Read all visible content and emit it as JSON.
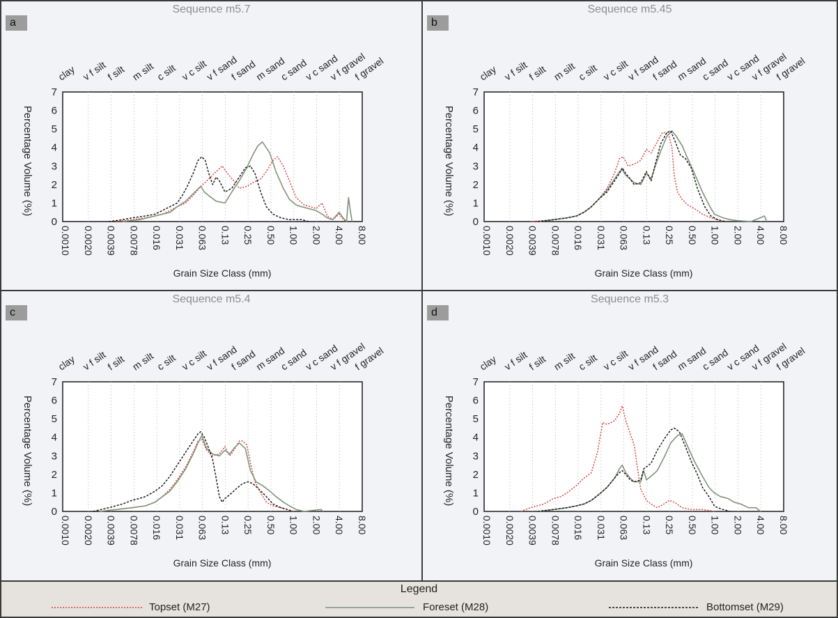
{
  "legend": {
    "title": "Legend",
    "items": [
      {
        "label": "Topset (M27)",
        "color": "#d94040",
        "dash": "2,2"
      },
      {
        "label": "Foreset (M28)",
        "color": "#7e9379",
        "dash": ""
      },
      {
        "label": "Bottomset (M29)",
        "color": "#1a1a1a",
        "dash": "3,2"
      }
    ]
  },
  "chart_data": [
    {
      "type": "line",
      "panel_label": "a",
      "title": "Sequence m5.7",
      "xlabel": "Grain Size Class (mm)",
      "ylabel": "Percentage Volume (%)",
      "ylim": [
        0,
        7
      ],
      "xscale": "log",
      "xlim": [
        0.001,
        8.0
      ],
      "x_ticks": [
        "0.0010",
        "0.0020",
        "0.0039",
        "0.0078",
        "0.016",
        "0.031",
        "0.063",
        "0.13",
        "0.25",
        "0.50",
        "1.00",
        "2.00",
        "4.00",
        "8.00"
      ],
      "y_ticks": [
        "0",
        "1",
        "2",
        "3",
        "4",
        "5",
        "6",
        "7"
      ],
      "grid": "vertical dotted",
      "class_labels": [
        "clay",
        "v f silt",
        "f silt",
        "m silt",
        "c silt",
        "v c silt",
        "v f sand",
        "f sand",
        "m sand",
        "c sand",
        "v c sand",
        "v f gravel",
        "f gravel"
      ],
      "series": [
        {
          "name": "Topset (M27)",
          "x": [
            0.005,
            0.008,
            0.012,
            0.016,
            0.02,
            0.025,
            0.031,
            0.04,
            0.05,
            0.063,
            0.08,
            0.1,
            0.12,
            0.14,
            0.17,
            0.2,
            0.25,
            0.3,
            0.38,
            0.45,
            0.55,
            0.63,
            0.75,
            0.9,
            1.1,
            1.4,
            1.7,
            2.0,
            2.4,
            2.8,
            3.3,
            4.0,
            4.8
          ],
          "y": [
            0,
            0.1,
            0.2,
            0.3,
            0.4,
            0.6,
            0.8,
            1.0,
            1.4,
            1.9,
            2.3,
            2.7,
            3.0,
            2.6,
            2.2,
            1.8,
            1.9,
            2.1,
            2.3,
            2.7,
            3.3,
            3.5,
            3.0,
            2.2,
            1.3,
            0.9,
            0.8,
            0.7,
            1.0,
            0.3,
            0.1,
            0.4,
            0
          ]
        },
        {
          "name": "Foreset (M28)",
          "x": [
            0.006,
            0.01,
            0.016,
            0.025,
            0.031,
            0.04,
            0.05,
            0.063,
            0.07,
            0.08,
            0.1,
            0.13,
            0.16,
            0.2,
            0.25,
            0.3,
            0.35,
            0.4,
            0.5,
            0.6,
            0.75,
            0.9,
            1.1,
            1.3,
            1.6,
            2.0,
            2.4,
            2.8,
            3.3,
            4.0,
            4.5,
            5.0,
            5.3,
            5.6,
            5.9
          ],
          "y": [
            0,
            0.1,
            0.3,
            0.5,
            0.8,
            1.1,
            1.5,
            1.9,
            1.6,
            1.4,
            1.1,
            1.0,
            1.6,
            2.2,
            2.9,
            3.6,
            4.1,
            4.3,
            3.7,
            2.7,
            1.8,
            1.2,
            0.9,
            0.8,
            0.7,
            0.6,
            0.4,
            0.2,
            0.1,
            0.5,
            0.2,
            0,
            1.3,
            0.6,
            0
          ]
        },
        {
          "name": "Bottomset (M29)",
          "x": [
            0.004,
            0.006,
            0.008,
            0.012,
            0.016,
            0.02,
            0.025,
            0.031,
            0.036,
            0.042,
            0.05,
            0.058,
            0.065,
            0.072,
            0.08,
            0.09,
            0.1,
            0.11,
            0.13,
            0.16,
            0.2,
            0.24,
            0.28,
            0.32,
            0.38,
            0.45,
            0.55,
            0.7,
            0.9,
            1.1,
            1.3,
            1.6
          ],
          "y": [
            0,
            0.1,
            0.2,
            0.3,
            0.4,
            0.6,
            0.8,
            1.0,
            1.4,
            1.9,
            2.6,
            3.3,
            3.5,
            3.3,
            2.6,
            2.0,
            2.4,
            2.2,
            1.6,
            1.8,
            2.4,
            2.9,
            3.0,
            2.6,
            1.6,
            0.8,
            0.4,
            0.2,
            0.1,
            0.1,
            0.1,
            0
          ]
        }
      ]
    },
    {
      "type": "line",
      "panel_label": "b",
      "title": "Sequence m5.45",
      "xlabel": "Grain Size Class (mm)",
      "ylabel": "Percentage Volume (%)",
      "ylim": [
        0,
        7
      ],
      "xscale": "log",
      "xlim": [
        0.001,
        8.0
      ],
      "x_ticks": [
        "0.0010",
        "0.0020",
        "0.0039",
        "0.0078",
        "0.016",
        "0.031",
        "0.063",
        "0.13",
        "0.25",
        "0.50",
        "1.00",
        "2.00",
        "4.00",
        "8.00"
      ],
      "y_ticks": [
        "0",
        "1",
        "2",
        "3",
        "4",
        "5",
        "6",
        "7"
      ],
      "grid": "vertical dotted",
      "class_labels": [
        "clay",
        "v f silt",
        "f silt",
        "m silt",
        "c silt",
        "v c silt",
        "v f sand",
        "f sand",
        "m sand",
        "c sand",
        "v c sand",
        "v f gravel",
        "f gravel"
      ],
      "series": [
        {
          "name": "Topset (M27)",
          "x": [
            0.004,
            0.006,
            0.008,
            0.012,
            0.016,
            0.02,
            0.025,
            0.031,
            0.04,
            0.05,
            0.058,
            0.065,
            0.075,
            0.09,
            0.11,
            0.13,
            0.15,
            0.18,
            0.21,
            0.25,
            0.28,
            0.3,
            0.33,
            0.38,
            0.45,
            0.55,
            0.7,
            0.9,
            1.1,
            1.3
          ],
          "y": [
            0,
            0.05,
            0.1,
            0.2,
            0.3,
            0.5,
            0.8,
            1.2,
            1.8,
            2.6,
            3.4,
            3.5,
            3.0,
            3.1,
            3.3,
            3.9,
            3.7,
            4.3,
            4.8,
            4.8,
            4.0,
            2.5,
            1.6,
            1.2,
            0.9,
            0.7,
            0.4,
            0.2,
            0.1,
            0
          ]
        },
        {
          "name": "Foreset (M28)",
          "x": [
            0.005,
            0.008,
            0.012,
            0.016,
            0.02,
            0.025,
            0.031,
            0.04,
            0.05,
            0.058,
            0.063,
            0.07,
            0.08,
            0.09,
            0.11,
            0.13,
            0.15,
            0.17,
            0.2,
            0.24,
            0.28,
            0.32,
            0.38,
            0.45,
            0.55,
            0.7,
            0.85,
            1.0,
            1.3,
            1.6,
            2.0,
            3.0,
            4.5,
            4.8
          ],
          "y": [
            0,
            0.1,
            0.2,
            0.3,
            0.5,
            0.8,
            1.2,
            1.7,
            2.3,
            2.7,
            2.8,
            2.5,
            2.3,
            2.1,
            2.0,
            2.6,
            2.3,
            3.0,
            3.8,
            4.6,
            4.9,
            4.6,
            4.1,
            3.4,
            2.6,
            1.6,
            0.9,
            0.4,
            0.2,
            0.1,
            0.05,
            0,
            0.3,
            0
          ]
        },
        {
          "name": "Bottomset (M29)",
          "x": [
            0.005,
            0.008,
            0.012,
            0.016,
            0.02,
            0.025,
            0.031,
            0.04,
            0.05,
            0.058,
            0.063,
            0.07,
            0.08,
            0.09,
            0.11,
            0.13,
            0.15,
            0.17,
            0.2,
            0.24,
            0.27,
            0.31,
            0.36,
            0.42,
            0.5,
            0.6,
            0.75,
            0.9,
            1.1,
            1.4
          ],
          "y": [
            0,
            0.1,
            0.2,
            0.3,
            0.5,
            0.8,
            1.2,
            1.6,
            2.2,
            2.6,
            2.9,
            2.6,
            2.3,
            2.0,
            2.1,
            2.7,
            2.2,
            3.1,
            4.2,
            4.8,
            4.9,
            4.3,
            3.6,
            3.4,
            2.9,
            1.8,
            0.8,
            0.3,
            0.1,
            0
          ]
        }
      ]
    },
    {
      "type": "line",
      "panel_label": "c",
      "title": "Sequence m5.4",
      "xlabel": "Grain Size Class (mm)",
      "ylabel": "Percentage Volume (%)",
      "ylim": [
        0,
        7
      ],
      "xscale": "log",
      "xlim": [
        0.001,
        8.0
      ],
      "x_ticks": [
        "0.0010",
        "0.0020",
        "0.0039",
        "0.0078",
        "0.016",
        "0.031",
        "0.063",
        "0.13",
        "0.25",
        "0.50",
        "1.00",
        "2.00",
        "4.00",
        "8.00"
      ],
      "y_ticks": [
        "0",
        "1",
        "2",
        "3",
        "4",
        "5",
        "6",
        "7"
      ],
      "grid": "vertical dotted",
      "class_labels": [
        "clay",
        "v f silt",
        "f silt",
        "m silt",
        "c silt",
        "v c silt",
        "v f sand",
        "f sand",
        "m sand",
        "c sand",
        "v c sand",
        "v f gravel",
        "f gravel"
      ],
      "series": [
        {
          "name": "Topset (M27)",
          "x": [
            0.003,
            0.005,
            0.008,
            0.012,
            0.016,
            0.02,
            0.025,
            0.031,
            0.04,
            0.05,
            0.058,
            0.065,
            0.075,
            0.09,
            0.11,
            0.13,
            0.15,
            0.17,
            0.2,
            0.22,
            0.25,
            0.28,
            0.32,
            0.38,
            0.45,
            0.55,
            0.7,
            0.85,
            1.0
          ],
          "y": [
            0,
            0.1,
            0.2,
            0.3,
            0.5,
            0.8,
            1.2,
            1.7,
            2.4,
            3.2,
            3.8,
            3.9,
            3.3,
            3.0,
            3.1,
            3.5,
            3.0,
            3.3,
            3.8,
            3.8,
            3.6,
            2.6,
            1.6,
            1.0,
            0.5,
            0.3,
            0.2,
            0.1,
            0
          ]
        },
        {
          "name": "Foreset (M28)",
          "x": [
            0.003,
            0.005,
            0.008,
            0.012,
            0.016,
            0.02,
            0.025,
            0.031,
            0.04,
            0.05,
            0.058,
            0.065,
            0.075,
            0.09,
            0.11,
            0.13,
            0.15,
            0.17,
            0.2,
            0.24,
            0.28,
            0.33,
            0.4,
            0.5,
            0.6,
            0.75,
            0.9,
            1.1,
            1.4,
            2.3,
            2.5
          ],
          "y": [
            0,
            0.1,
            0.2,
            0.3,
            0.5,
            0.8,
            1.1,
            1.6,
            2.3,
            3.1,
            3.7,
            4.1,
            3.4,
            3.1,
            3.0,
            3.3,
            3.1,
            3.4,
            3.7,
            3.4,
            2.2,
            1.6,
            1.4,
            1.1,
            0.8,
            0.5,
            0.3,
            0.1,
            0,
            0.1,
            0
          ]
        },
        {
          "name": "Bottomset (M29)",
          "x": [
            0.0025,
            0.004,
            0.006,
            0.008,
            0.01,
            0.012,
            0.016,
            0.02,
            0.025,
            0.031,
            0.04,
            0.05,
            0.058,
            0.063,
            0.07,
            0.08,
            0.09,
            0.1,
            0.11,
            0.12,
            0.13,
            0.15,
            0.18,
            0.22,
            0.26,
            0.3,
            0.36,
            0.45,
            0.55,
            0.7,
            0.85,
            1.0
          ],
          "y": [
            0,
            0.2,
            0.4,
            0.6,
            0.7,
            0.8,
            1.1,
            1.4,
            1.9,
            2.5,
            3.2,
            3.8,
            4.2,
            4.3,
            4.0,
            3.4,
            2.8,
            1.8,
            0.8,
            0.5,
            0.7,
            0.9,
            1.2,
            1.5,
            1.6,
            1.5,
            1.2,
            0.8,
            0.4,
            0.2,
            0.1,
            0
          ]
        }
      ]
    },
    {
      "type": "line",
      "panel_label": "d",
      "title": "Sequence m5.3",
      "xlabel": "Grain Size Class (mm)",
      "ylabel": "Percentage Volume (%)",
      "ylim": [
        0,
        7
      ],
      "xscale": "log",
      "xlim": [
        0.001,
        8.0
      ],
      "x_ticks": [
        "0.0010",
        "0.0020",
        "0.0039",
        "0.0078",
        "0.016",
        "0.031",
        "0.063",
        "0.13",
        "0.25",
        "0.50",
        "1.00",
        "2.00",
        "4.00",
        "8.00"
      ],
      "y_ticks": [
        "0",
        "1",
        "2",
        "3",
        "4",
        "5",
        "6",
        "7"
      ],
      "grid": "vertical dotted",
      "class_labels": [
        "clay",
        "v f silt",
        "f silt",
        "m silt",
        "c silt",
        "v c silt",
        "v f sand",
        "f sand",
        "m sand",
        "c sand",
        "v c sand",
        "v f gravel",
        "f gravel"
      ],
      "series": [
        {
          "name": "Topset (M27)",
          "x": [
            0.003,
            0.004,
            0.006,
            0.008,
            0.01,
            0.012,
            0.016,
            0.02,
            0.025,
            0.03,
            0.035,
            0.04,
            0.045,
            0.05,
            0.058,
            0.063,
            0.07,
            0.08,
            0.09,
            0.1,
            0.11,
            0.13,
            0.15,
            0.18,
            0.22,
            0.26,
            0.3,
            0.38,
            0.5,
            0.7,
            1.0
          ],
          "y": [
            0,
            0.2,
            0.4,
            0.7,
            0.8,
            1.0,
            1.4,
            1.8,
            2.1,
            3.2,
            4.8,
            4.7,
            4.8,
            4.9,
            5.3,
            5.7,
            4.9,
            4.2,
            3.6,
            2.3,
            1.2,
            0.6,
            0.4,
            0.2,
            0.4,
            0.6,
            0.5,
            0.2,
            0.1,
            0.1,
            0
          ]
        },
        {
          "name": "Foreset (M28)",
          "x": [
            0.005,
            0.008,
            0.012,
            0.016,
            0.02,
            0.025,
            0.031,
            0.04,
            0.05,
            0.058,
            0.063,
            0.07,
            0.08,
            0.09,
            0.11,
            0.12,
            0.13,
            0.15,
            0.18,
            0.22,
            0.27,
            0.33,
            0.38,
            0.45,
            0.55,
            0.7,
            0.85,
            1.0,
            1.2,
            1.5,
            1.8,
            2.2,
            2.8,
            3.5,
            4.0
          ],
          "y": [
            0,
            0.1,
            0.2,
            0.3,
            0.4,
            0.6,
            0.9,
            1.3,
            1.8,
            2.3,
            2.5,
            2.1,
            1.8,
            1.6,
            1.6,
            2.2,
            1.7,
            1.9,
            2.2,
            2.9,
            3.7,
            4.1,
            4.2,
            3.5,
            2.7,
            1.9,
            1.3,
            1.0,
            0.8,
            0.7,
            0.5,
            0.4,
            0.2,
            0.2,
            0
          ]
        },
        {
          "name": "Bottomset (M29)",
          "x": [
            0.005,
            0.008,
            0.012,
            0.016,
            0.02,
            0.025,
            0.031,
            0.04,
            0.05,
            0.058,
            0.063,
            0.07,
            0.08,
            0.09,
            0.11,
            0.12,
            0.13,
            0.15,
            0.18,
            0.2,
            0.23,
            0.27,
            0.3,
            0.35,
            0.42,
            0.5,
            0.6,
            0.7,
            0.85,
            1.0,
            1.1,
            1.3,
            1.6
          ],
          "y": [
            0,
            0.1,
            0.2,
            0.3,
            0.4,
            0.6,
            0.9,
            1.3,
            1.8,
            2.1,
            2.2,
            2.0,
            1.7,
            1.6,
            1.7,
            2.3,
            2.4,
            2.6,
            3.3,
            3.6,
            4.0,
            4.4,
            4.5,
            4.3,
            3.5,
            2.7,
            2.0,
            1.3,
            0.8,
            0.3,
            0.2,
            0.1,
            0
          ]
        }
      ]
    }
  ]
}
